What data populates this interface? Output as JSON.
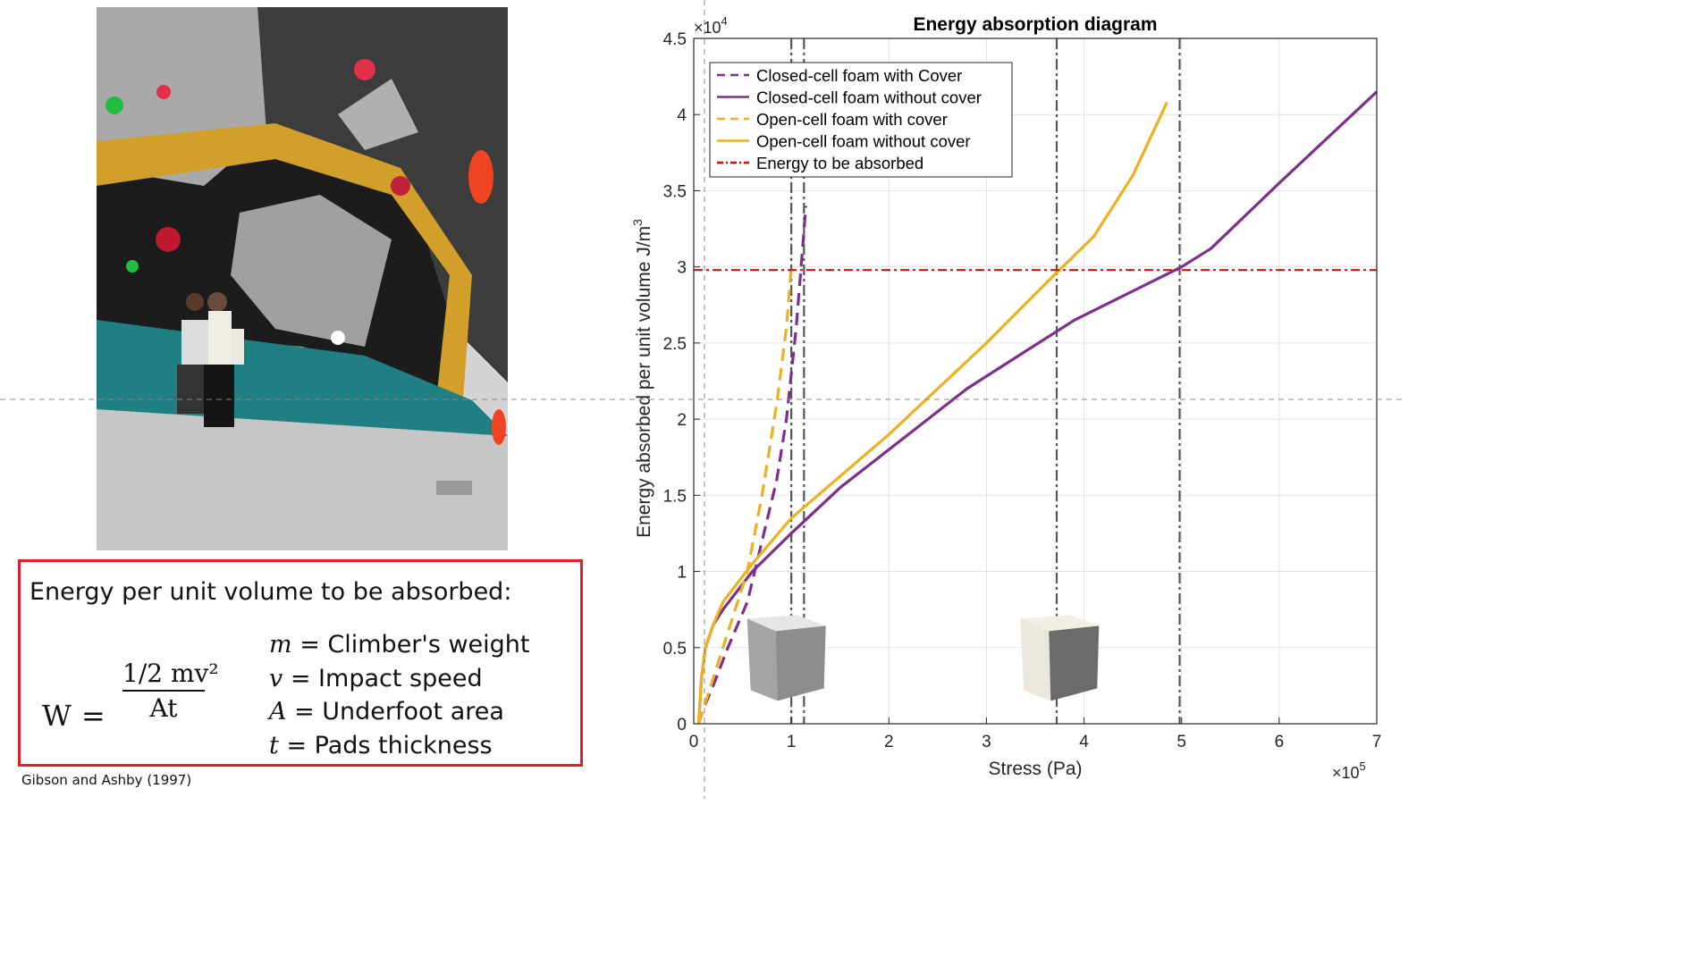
{
  "formula": {
    "heading": "Energy per unit volume to be absorbed:",
    "lhs": "W",
    "equals": "=",
    "numerator": "1/2 mv²",
    "denominator": "At",
    "definitions": [
      {
        "symbol": "m",
        "text": " = Climber's weight"
      },
      {
        "symbol": "v",
        "text": " = Impact speed"
      },
      {
        "symbol": "A",
        "text": " = Underfoot area"
      },
      {
        "symbol": "t",
        "text": " = Pads thickness"
      }
    ]
  },
  "citation": "Gibson and Ashby (1997)",
  "chart_data": {
    "type": "line",
    "title": "Energy absorption diagram",
    "xlabel": "Stress (Pa)",
    "ylabel": "Energy absorbed per unit volume J/m",
    "ylabel_superscript": "3",
    "x_multiplier": "×10",
    "x_multiplier_exp": "5",
    "y_multiplier": "×10",
    "y_multiplier_exp": "4",
    "xlim": [
      0,
      7
    ],
    "ylim": [
      0,
      4.5
    ],
    "xticks": [
      "0",
      "1",
      "2",
      "3",
      "4",
      "5",
      "6",
      "7"
    ],
    "yticks": [
      "0",
      "0.5",
      "1",
      "1.5",
      "2",
      "2.5",
      "3",
      "3.5",
      "4",
      "4.5"
    ],
    "grid": true,
    "legend_position": "top-left",
    "series": [
      {
        "name": "Closed-cell foam with Cover",
        "color": "#7e2f8e",
        "dash": "dashed",
        "x": [
          0.05,
          0.1,
          0.2,
          0.35,
          0.55,
          0.7,
          0.85,
          0.95,
          1.05,
          1.1,
          1.15
        ],
        "y": [
          0.0,
          0.1,
          0.25,
          0.5,
          0.8,
          1.2,
          1.6,
          2.0,
          2.6,
          3.0,
          3.4
        ]
      },
      {
        "name": "Closed-cell foam without cover",
        "color": "#7e2f8e",
        "dash": "solid",
        "x": [
          0.05,
          0.08,
          0.12,
          0.2,
          0.3,
          0.6,
          1.0,
          1.5,
          2.8,
          3.9,
          5.0,
          5.3,
          6.0,
          7.0
        ],
        "y": [
          0.0,
          0.3,
          0.5,
          0.65,
          0.75,
          1.0,
          1.25,
          1.55,
          2.2,
          2.65,
          3.0,
          3.12,
          3.55,
          4.15
        ]
      },
      {
        "name": "Open-cell foam with cover",
        "color": "#edb120",
        "dash": "dashed",
        "x": [
          0.05,
          0.1,
          0.2,
          0.35,
          0.55,
          0.7,
          0.85,
          0.95,
          1.0
        ],
        "y": [
          0.0,
          0.1,
          0.3,
          0.6,
          1.0,
          1.5,
          2.1,
          2.6,
          3.0
        ]
      },
      {
        "name": "Open-cell foam without cover",
        "color": "#edb120",
        "dash": "solid",
        "x": [
          0.05,
          0.08,
          0.12,
          0.2,
          0.3,
          0.6,
          1.0,
          2.0,
          3.0,
          3.7,
          4.1,
          4.5,
          4.85
        ],
        "y": [
          0.0,
          0.3,
          0.5,
          0.65,
          0.8,
          1.05,
          1.35,
          1.9,
          2.5,
          2.95,
          3.2,
          3.6,
          4.08
        ]
      },
      {
        "name": "Energy to be absorbed",
        "color": "#ff0000",
        "dash": "dashdot",
        "x": [
          0,
          7
        ],
        "y": [
          2.98,
          2.98
        ]
      }
    ],
    "vertical_lines_x": [
      1.0,
      1.13,
      3.72,
      4.98
    ],
    "inset_images": [
      "closed-cell foam sample",
      "open-cell foam sample"
    ]
  }
}
